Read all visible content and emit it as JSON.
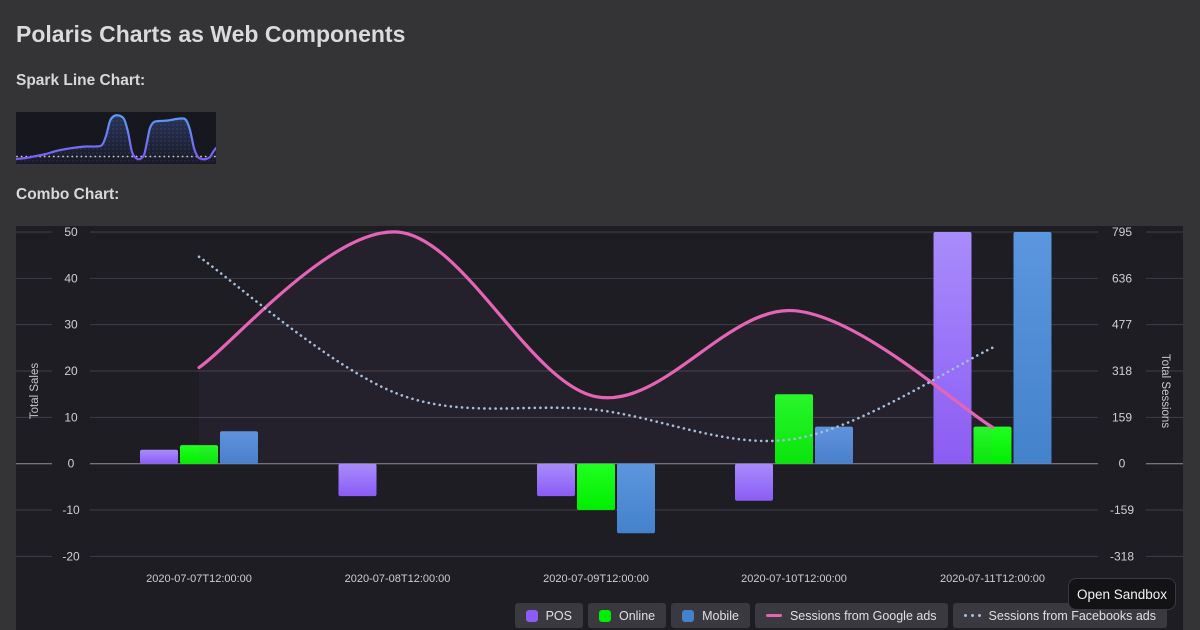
{
  "page": {
    "title": "Polaris Charts as Web Components",
    "spark_heading": "Spark Line Chart:",
    "combo_heading": "Combo Chart:",
    "sandbox_button": "Open Sandbox"
  },
  "colors": {
    "page_bg": "#343437",
    "chart_bg": "#1D1D23",
    "spark_bg": "#17171F",
    "grid": "#3F3F47",
    "zero_line": "#8E8E96",
    "tick_text": "#D0D0D4",
    "xlabel_text": "#CDCDD1",
    "axis_title_text": "#C6C6CB",
    "legend_bg": "#39393F"
  },
  "chart_data": [
    {
      "type": "area",
      "name": "sparkline",
      "points": [
        [
          0,
          5
        ],
        [
          10,
          6
        ],
        [
          20,
          8
        ],
        [
          30,
          10
        ],
        [
          40,
          13
        ],
        [
          50,
          15
        ],
        [
          60,
          16.5
        ],
        [
          70,
          17.5
        ],
        [
          80,
          17.5
        ],
        [
          86,
          19
        ],
        [
          90,
          28
        ],
        [
          94,
          43
        ],
        [
          98,
          48
        ],
        [
          103,
          48.5
        ],
        [
          108,
          45
        ],
        [
          112,
          32
        ],
        [
          116,
          12
        ],
        [
          120,
          6
        ],
        [
          124,
          5
        ],
        [
          128,
          9
        ],
        [
          131,
          22
        ],
        [
          134,
          36
        ],
        [
          138,
          42
        ],
        [
          144,
          43
        ],
        [
          152,
          43.5
        ],
        [
          160,
          45
        ],
        [
          166,
          45.5
        ],
        [
          170,
          44
        ],
        [
          174,
          34
        ],
        [
          178,
          16
        ],
        [
          182,
          7
        ],
        [
          186,
          5
        ],
        [
          190,
          5
        ],
        [
          194,
          7
        ],
        [
          197,
          12
        ],
        [
          200,
          16
        ]
      ],
      "comparison_value": 7.5,
      "x_range": [
        0,
        200
      ],
      "y_range": [
        0,
        52
      ],
      "line_gradient_top": "#5C9DF5",
      "line_gradient_bottom": "#7C5CF5",
      "comparison_color": "#C3C7D0"
    },
    {
      "type": "combo",
      "categories": [
        "2020-07-07T12:00:00",
        "2020-07-08T12:00:00",
        "2020-07-09T12:00:00",
        "2020-07-10T12:00:00",
        "2020-07-11T12:00:00"
      ],
      "bar_series": [
        {
          "name": "POS",
          "color": "#8B5CF6",
          "color_top": "#A98CFB",
          "values": [
            3,
            -7,
            -7,
            -8,
            50
          ]
        },
        {
          "name": "Online",
          "color": "#00EE00",
          "color_top": "#21FF21",
          "values": [
            4,
            0,
            -10,
            15,
            8
          ]
        },
        {
          "name": "Mobile",
          "color": "#4482CC",
          "color_top": "#5B96DE",
          "values": [
            7,
            0,
            -15,
            8,
            50
          ]
        }
      ],
      "line_series": [
        {
          "name": "Sessions from Google ads",
          "style": "solid",
          "color": "#E464B6",
          "axis": "right",
          "values": [
            330,
            795,
            230,
            525,
            125
          ]
        },
        {
          "name": "Sessions from Facebooks ads",
          "style": "dotted",
          "color": "#A6BEDC",
          "axis": "right",
          "values": [
            710,
            240,
            185,
            85,
            398
          ]
        }
      ],
      "left_axis": {
        "title": "Total Sales",
        "ticks": [
          50,
          40,
          30,
          20,
          10,
          0,
          -10,
          -20
        ],
        "range": [
          -20,
          50
        ]
      },
      "right_axis": {
        "title": "Total Sessions",
        "ticks": [
          795,
          636,
          477,
          318,
          159,
          0,
          -159,
          -318
        ],
        "range": [
          -318,
          795
        ]
      },
      "grid": true,
      "legend_position": "bottom-right"
    }
  ]
}
